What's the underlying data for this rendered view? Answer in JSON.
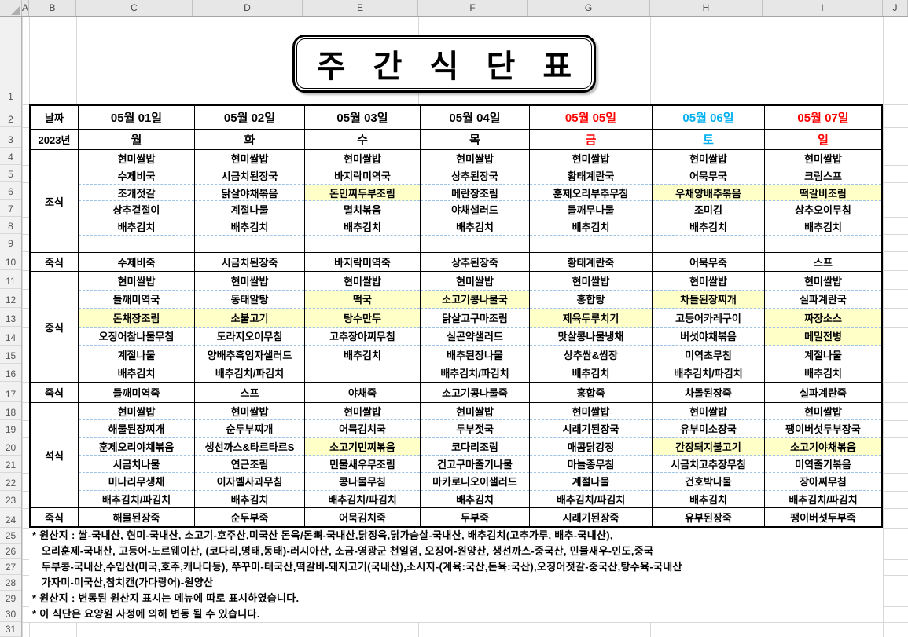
{
  "title": "주 간 식 단 표",
  "sheet": {
    "column_letters": [
      "A",
      "B",
      "C",
      "D",
      "E",
      "F",
      "G",
      "H",
      "I",
      "J"
    ],
    "row_count": 31
  },
  "colors": {
    "weekend_red": "#FF0000",
    "saturday_blue": "#00B0F0",
    "highlight_yellow": "#FFFFC8"
  },
  "header": {
    "date_label": "날짜",
    "year_label": "2023년",
    "days": [
      {
        "date": "05월 01일",
        "weekday": "월",
        "accent": "none"
      },
      {
        "date": "05월 02일",
        "weekday": "화",
        "accent": "none"
      },
      {
        "date": "05월 03일",
        "weekday": "수",
        "accent": "none"
      },
      {
        "date": "05월 04일",
        "weekday": "목",
        "accent": "none"
      },
      {
        "date": "05월 05일",
        "weekday": "금",
        "accent": "red"
      },
      {
        "date": "05월 06일",
        "weekday": "토",
        "accent": "blue"
      },
      {
        "date": "05월 07일",
        "weekday": "일",
        "accent": "red"
      }
    ]
  },
  "sections": [
    {
      "label": "조식",
      "kind": "meals",
      "days": [
        {
          "items": [
            "현미쌀밥",
            "수제비국",
            "조개젓갈",
            "상추겉절이",
            "배추김치",
            ""
          ],
          "highlight": []
        },
        {
          "items": [
            "현미쌀밥",
            "시금치된장국",
            "닭살야채볶음",
            "계절나물",
            "배추김치",
            ""
          ],
          "highlight": []
        },
        {
          "items": [
            "현미쌀밥",
            "바지락미역국",
            "돈민찌두부조림",
            "멸치볶음",
            "배추김치",
            ""
          ],
          "highlight": [
            2
          ]
        },
        {
          "items": [
            "현미쌀밥",
            "상추된장국",
            "메란장조림",
            "야채샐러드",
            "배추김치",
            ""
          ],
          "highlight": []
        },
        {
          "items": [
            "현미쌀밥",
            "황태계란국",
            "훈제오리부추무침",
            "들깨무나물",
            "배추김치",
            ""
          ],
          "highlight": []
        },
        {
          "items": [
            "현미쌀밥",
            "어묵무국",
            "우채양배추볶음",
            "조미김",
            "배추김치",
            ""
          ],
          "highlight": [
            2
          ]
        },
        {
          "items": [
            "현미쌀밥",
            "크림스프",
            "떡갈비조림",
            "상추오이무침",
            "배추김치",
            ""
          ],
          "highlight": [
            2
          ]
        }
      ]
    },
    {
      "label": "죽식",
      "kind": "porridge",
      "days": [
        "수제비죽",
        "시금치된장죽",
        "바지락미역죽",
        "상추된장죽",
        "황태계란죽",
        "어묵무죽",
        "스프"
      ]
    },
    {
      "label": "중식",
      "kind": "meals",
      "days": [
        {
          "items": [
            "현미쌀밥",
            "들깨미역국",
            "돈채장조림",
            "오징어참나물무침",
            "계절나물",
            "배추김치"
          ],
          "highlight": [
            2
          ]
        },
        {
          "items": [
            "현미쌀밥",
            "동태알탕",
            "소불고기",
            "도라지오이무침",
            "양배추흑임자샐러드",
            "배추김치/파김치"
          ],
          "highlight": [
            2
          ]
        },
        {
          "items": [
            "현미쌀밥",
            "떡국",
            "탕수만두",
            "고추장아찌무침",
            "배추김치",
            ""
          ],
          "highlight": [
            1,
            2
          ]
        },
        {
          "items": [
            "현미쌀밥",
            "소고기콩나물국",
            "닭살고구마조림",
            "실곤약샐러드",
            "배추된장나물",
            "배추김치/파김치"
          ],
          "highlight": [
            1
          ]
        },
        {
          "items": [
            "현미쌀밥",
            "홍합탕",
            "제육두루치기",
            "맛살콩나물냉채",
            "상추쌈&쌈장",
            "배추김치"
          ],
          "highlight": [
            2
          ]
        },
        {
          "items": [
            "현미쌀밥",
            "차돌된장찌개",
            "고등어카레구이",
            "버섯야채볶음",
            "미역초무침",
            "배추김치/파김치"
          ],
          "highlight": [
            1
          ]
        },
        {
          "items": [
            "현미쌀밥",
            "실파계란국",
            "짜장소스",
            "메밀전병",
            "계절나물",
            "배추김치"
          ],
          "highlight": [
            2,
            3
          ]
        }
      ]
    },
    {
      "label": "죽식",
      "kind": "porridge",
      "days": [
        "들깨미역죽",
        "스프",
        "야채죽",
        "소고기콩나물죽",
        "홍합죽",
        "차돌된장죽",
        "실파계란죽"
      ]
    },
    {
      "label": "석식",
      "kind": "meals",
      "days": [
        {
          "items": [
            "현미쌀밥",
            "해물된장찌개",
            "훈제오리야채볶음",
            "시금치나물",
            "미나리무생채",
            "배추김치/파김치"
          ],
          "highlight": []
        },
        {
          "items": [
            "현미쌀밥",
            "순두부찌개",
            "생선까스&타르타르S",
            "연근조림",
            "이자벨사과무침",
            "배추김치"
          ],
          "highlight": []
        },
        {
          "items": [
            "현미쌀밥",
            "어묵김치국",
            "소고기민찌볶음",
            "민물새우무조림",
            "콩나물무침",
            "배추김치/파김치"
          ],
          "highlight": [
            2
          ]
        },
        {
          "items": [
            "현미쌀밥",
            "두부젓국",
            "코다리조림",
            "건고구마줄기나물",
            "마카로니오이샐러드",
            "배추김치"
          ],
          "highlight": []
        },
        {
          "items": [
            "현미쌀밥",
            "시래기된장국",
            "매콤닭강정",
            "마늘종무침",
            "계절나물",
            "배추김치/파김치"
          ],
          "highlight": []
        },
        {
          "items": [
            "현미쌀밥",
            "유부미소장국",
            "간장돼지불고기",
            "시금치고추장무침",
            "건호박나물",
            "배추김치"
          ],
          "highlight": [
            2
          ]
        },
        {
          "items": [
            "현미쌀밥",
            "팽이버섯두부장국",
            "소고기야채볶음",
            "미역줄기볶음",
            "장아찌무침",
            "배추김치/파김치"
          ],
          "highlight": [
            2
          ]
        }
      ]
    },
    {
      "label": "죽식",
      "kind": "porridge",
      "days": [
        "해물된장죽",
        "순두부죽",
        "어묵김치죽",
        "두부죽",
        "시래기된장죽",
        "유부된장죽",
        "팽이버섯두부죽"
      ]
    }
  ],
  "footnotes": [
    "* 원산지 : 쌀-국내산, 현미-국내산, 소고기-호주산,미국산 돈육/돈뼈-국내산,닭정육,닭가슴살-국내산, 배추김치(고추가루, 배추-국내산),",
    "   오리훈제-국내산, 고등어-노르웨이산, (코다리,명태,동태)-러시아산, 소금-영광군 천일염, 오징어-원양산, 생선까스-중국산, 민물새우-인도,중국",
    "   두부콩-국내산,수입산(미국,호주,캐나다등), 쭈꾸미-태국산,떡갈비-돼지고기(국내산),소시지-(계육:국산,돈육:국산),오징어젓갈-중국산,탕수육-국내산",
    "   가자미-미국산,참치캔(가다랑어)-원양산",
    "* 원산지 : 변동된 원산지 표시는 메뉴에 따로 표시하였습니다.",
    "* 이 식단은 요양원 사정에 의해 변동 될 수 있습니다."
  ]
}
